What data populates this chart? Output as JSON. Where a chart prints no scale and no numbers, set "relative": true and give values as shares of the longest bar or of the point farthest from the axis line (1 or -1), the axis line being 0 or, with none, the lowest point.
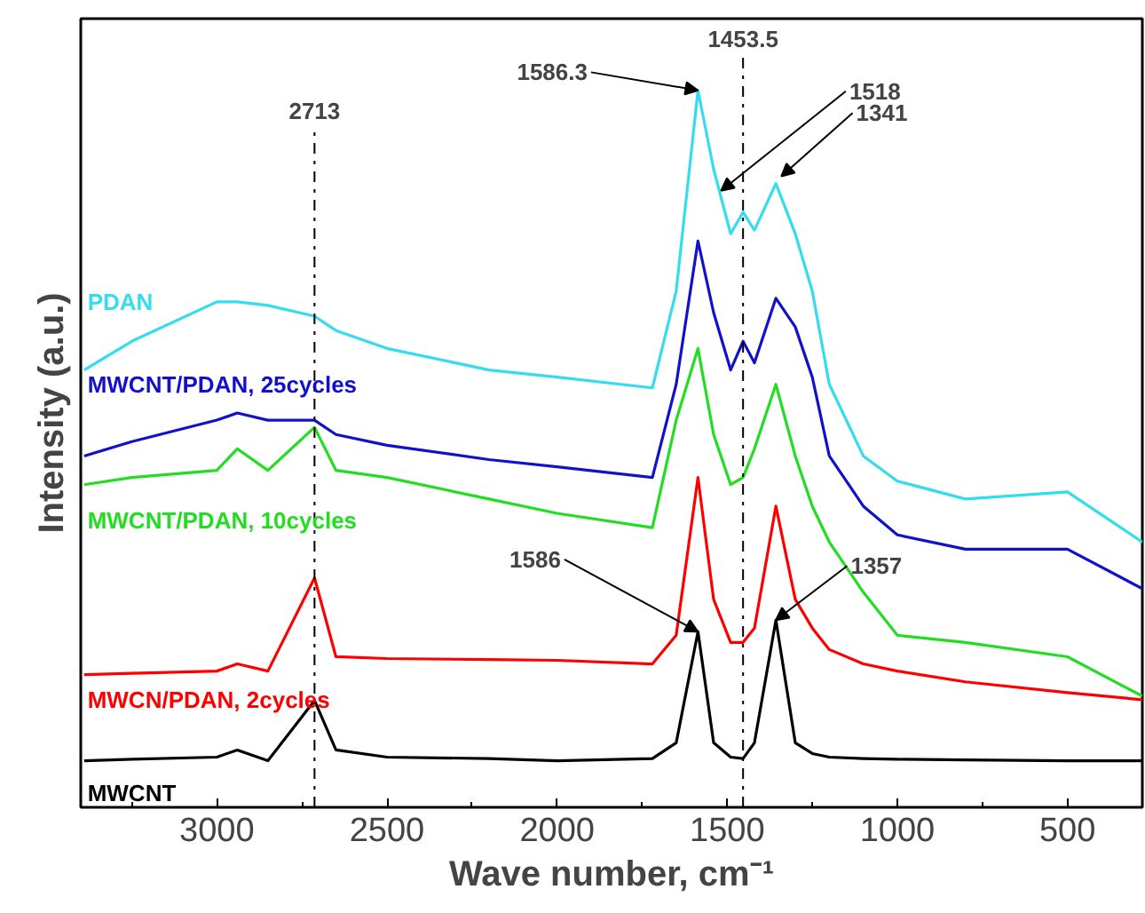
{
  "chart_data": {
    "type": "line",
    "relative": true,
    "xlabel": "Wave number, cm⁻¹",
    "ylabel": "Intensity (a.u.)",
    "xlim": [
      3400,
      280
    ],
    "xticks": [
      3000,
      2500,
      2000,
      1500,
      1000,
      500
    ],
    "grid": false,
    "marker": "none",
    "line_style": "solid",
    "x": [
      3390,
      3250,
      3000,
      2940,
      2850,
      2713,
      2650,
      2500,
      2200,
      2000,
      1720,
      1650,
      1586,
      1540,
      1490,
      1453.5,
      1420,
      1357,
      1300,
      1250,
      1200,
      1100,
      1000,
      800,
      500,
      280
    ],
    "series": [
      {
        "name": "MWCNT",
        "color": "#000000",
        "values": [
          0.065,
          0.067,
          0.07,
          0.08,
          0.065,
          0.149,
          0.08,
          0.07,
          0.068,
          0.065,
          0.068,
          0.09,
          0.245,
          0.09,
          0.07,
          0.068,
          0.09,
          0.261,
          0.09,
          0.075,
          0.07,
          0.068,
          0.067,
          0.066,
          0.065,
          0.065
        ]
      },
      {
        "name": "MWCN/PDAN, 2cycles",
        "color": "#ff0000",
        "values": [
          0.185,
          0.187,
          0.19,
          0.2,
          0.19,
          0.32,
          0.21,
          0.2075,
          0.206,
          0.205,
          0.2,
          0.24,
          0.46,
          0.29,
          0.23,
          0.23,
          0.25,
          0.42,
          0.29,
          0.25,
          0.22,
          0.2,
          0.19,
          0.175,
          0.16,
          0.15
        ]
      },
      {
        "name": "MWCNT/PDAN, 10cycles",
        "color": "#22dd22",
        "values": [
          0.45,
          0.46,
          0.47,
          0.5,
          0.47,
          0.53,
          0.47,
          0.46,
          0.43,
          0.41,
          0.39,
          0.54,
          0.64,
          0.52,
          0.45,
          0.46,
          0.5,
          0.59,
          0.49,
          0.42,
          0.37,
          0.3,
          0.24,
          0.23,
          0.21,
          0.155
        ]
      },
      {
        "name": "MWCNT/PDAN, 25cycles",
        "color": "#1111cc",
        "values": [
          0.49,
          0.51,
          0.54,
          0.55,
          0.54,
          0.54,
          0.52,
          0.505,
          0.485,
          0.475,
          0.46,
          0.59,
          0.79,
          0.69,
          0.61,
          0.65,
          0.62,
          0.71,
          0.67,
          0.6,
          0.49,
          0.42,
          0.38,
          0.36,
          0.36,
          0.305
        ]
      },
      {
        "name": "PDAN",
        "color": "#33ddee",
        "values": [
          0.61,
          0.65,
          0.705,
          0.705,
          0.7,
          0.685,
          0.665,
          0.64,
          0.61,
          0.6,
          0.585,
          0.72,
          1.0,
          0.89,
          0.8,
          0.83,
          0.805,
          0.87,
          0.8,
          0.72,
          0.59,
          0.49,
          0.455,
          0.43,
          0.44,
          0.37
        ]
      }
    ],
    "ref_lines": [
      {
        "axis": "x",
        "value": 2713,
        "label": "2713",
        "line_style": "dashdot",
        "color": "#000000"
      },
      {
        "axis": "x",
        "value": 1453.5,
        "label": "1453.5",
        "line_style": "dashdot",
        "color": "#000000"
      }
    ],
    "annotations": [
      {
        "text": "1586.3",
        "x": 1586,
        "y": 1.0
      },
      {
        "text": "1518",
        "x": 1518,
        "y": 0.86
      },
      {
        "text": "1341",
        "x": 1341,
        "y": 0.88
      },
      {
        "text": "1586",
        "x": 1586,
        "y": 0.245
      },
      {
        "text": "1357",
        "x": 1357,
        "y": 0.261
      }
    ]
  }
}
